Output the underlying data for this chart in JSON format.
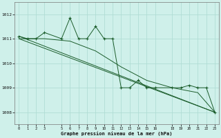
{
  "background_color": "#cff0ea",
  "grid_color": "#b0ddd5",
  "line_color": "#1a5c2a",
  "title": "Graphe pression niveau de la mer (hPa)",
  "xlim": [
    -0.5,
    23.5
  ],
  "ylim": [
    1007.5,
    1012.5
  ],
  "yticks": [
    1008,
    1009,
    1010,
    1011,
    1012
  ],
  "xtick_positions": [
    0,
    1,
    2,
    3,
    5,
    6,
    7,
    8,
    9,
    10,
    11,
    12,
    13,
    14,
    15,
    16,
    18,
    19,
    20,
    21,
    22,
    23
  ],
  "xtick_labels": [
    "0",
    "1",
    "2",
    "3",
    "5",
    "6",
    "7",
    "8",
    "9",
    "10",
    "11",
    "12",
    "13",
    "14",
    "15",
    "16",
    "18",
    "19",
    "20",
    "21",
    "22",
    "23"
  ],
  "series1_x": [
    0,
    1,
    2,
    3,
    5,
    6,
    7,
    8,
    9,
    10,
    11,
    12,
    13,
    14,
    15,
    16,
    18,
    19,
    20,
    21,
    22,
    23
  ],
  "series1_y": [
    1011.1,
    1011.0,
    1011.0,
    1011.25,
    1011.0,
    1011.85,
    1011.0,
    1011.0,
    1011.5,
    1011.0,
    1011.0,
    1009.0,
    1009.0,
    1009.3,
    1009.0,
    1009.0,
    1009.0,
    1009.0,
    1009.1,
    1009.0,
    1009.0,
    1008.0
  ],
  "series2_x": [
    0,
    3,
    6,
    9,
    12,
    15,
    18,
    21,
    23
  ],
  "series2_y": [
    1011.0,
    1011.0,
    1010.9,
    1010.5,
    1009.85,
    1009.3,
    1009.0,
    1008.8,
    1008.0
  ],
  "series3_x": [
    0,
    23
  ],
  "series3_y": [
    1011.0,
    1008.0
  ],
  "series4_x": [
    0,
    23
  ],
  "series4_y": [
    1011.1,
    1008.0
  ]
}
